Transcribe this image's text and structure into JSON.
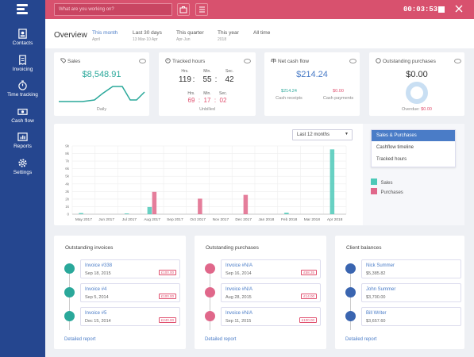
{
  "sidebar": {
    "items": [
      {
        "label": "Contacts"
      },
      {
        "label": "Invoicing"
      },
      {
        "label": "Time tracking"
      },
      {
        "label": "Cash flow"
      },
      {
        "label": "Reports"
      },
      {
        "label": "Settings"
      }
    ]
  },
  "topbar": {
    "search_placeholder": "What are you working on?",
    "timer": "00:03:53"
  },
  "header": {
    "title": "Overview",
    "periods": [
      {
        "label": "This month",
        "sub": "April",
        "active": true
      },
      {
        "label": "Last 30 days",
        "sub": "13 Mar-10 Apr"
      },
      {
        "label": "This quarter",
        "sub": "Apr-Jun"
      },
      {
        "label": "This year",
        "sub": "2018"
      },
      {
        "label": "All time",
        "sub": ""
      }
    ]
  },
  "cards": {
    "sales": {
      "title": "Sales",
      "value": "$8,548.91",
      "caption": "Daily"
    },
    "tracked": {
      "title": "Tracked hours",
      "hrs_label": "Hrs.",
      "min_label": "Min.",
      "sec_label": "Sec.",
      "hrs": "119",
      "min": "55",
      "sec": "42",
      "u_hrs": "69",
      "u_min": "17",
      "u_sec": "02",
      "unbilled": "Unbilled",
      "sep": ":"
    },
    "cashflow": {
      "title": "Net cash flow",
      "value": "$214.24",
      "receipts_val": "$214.24",
      "receipts_label": "Cash receipts",
      "payments_val": "$0.00",
      "payments_label": "Cash payments"
    },
    "purchases": {
      "title": "Outstanding purchases",
      "value": "$0.00",
      "overdue_label": "Overdue:",
      "overdue_value": "$0.00"
    }
  },
  "chart_panel": {
    "dropdown": "Last 12 months",
    "options": [
      "Sales & Purchases",
      "Cashflow timeline",
      "Tracked hours"
    ],
    "legend": [
      {
        "name": "Sales",
        "color": "#4dc9b8"
      },
      {
        "name": "Purchases",
        "color": "#e0678a"
      }
    ]
  },
  "chart_data": {
    "type": "bar",
    "categories": [
      "May 2017",
      "Jun 2017",
      "Jul 2017",
      "Aug 2017",
      "Sep 2017",
      "Oct 2017",
      "Nov 2017",
      "Dec 2017",
      "Jan 2018",
      "Feb 2018",
      "Mar 2018",
      "Apr 2018"
    ],
    "y_ticks": [
      "0",
      "1k",
      "2k",
      "3k",
      "4k",
      "5k",
      "6k",
      "7k",
      "8k",
      "9k"
    ],
    "ylim": [
      0,
      9000
    ],
    "series": [
      {
        "name": "Sales",
        "color": "#4dc9b8",
        "values": [
          150,
          0,
          100,
          950,
          0,
          0,
          0,
          0,
          0,
          200,
          0,
          8550
        ]
      },
      {
        "name": "Purchases",
        "color": "#e0678a",
        "values": [
          0,
          0,
          0,
          2950,
          0,
          2050,
          0,
          2550,
          0,
          0,
          0,
          0
        ]
      }
    ]
  },
  "invoices": {
    "title": "Outstanding invoices",
    "rows": [
      {
        "title": "Invoice #338",
        "date": "Sep 18, 2015",
        "amount": "£100.00"
      },
      {
        "title": "Invoice #4",
        "date": "Sep 5, 2014",
        "amount": "£100.00"
      },
      {
        "title": "Invoice #5",
        "date": "Dec 15, 2014",
        "amount": "£240.00"
      }
    ],
    "detail": "Detailed report"
  },
  "purchases_list": {
    "title": "Outstanding purchases",
    "rows": [
      {
        "title": "Invoice #N/A",
        "date": "Sep 16, 2014",
        "amount": "£58.35"
      },
      {
        "title": "Invoice #N/A",
        "date": "Aug 28, 2015",
        "amount": "£14.00"
      },
      {
        "title": "Invoice #N/A",
        "date": "Sep 11, 2015",
        "amount": "£100.00"
      }
    ],
    "detail": "Detailed report"
  },
  "clients": {
    "title": "Client balances",
    "rows": [
      {
        "title": "Nick Summer",
        "date": "$5,385.82"
      },
      {
        "title": "John Summer",
        "date": "$3,700.00"
      },
      {
        "title": "Bill Writer",
        "date": "$3,657.60"
      }
    ],
    "detail": "Detailed report"
  }
}
